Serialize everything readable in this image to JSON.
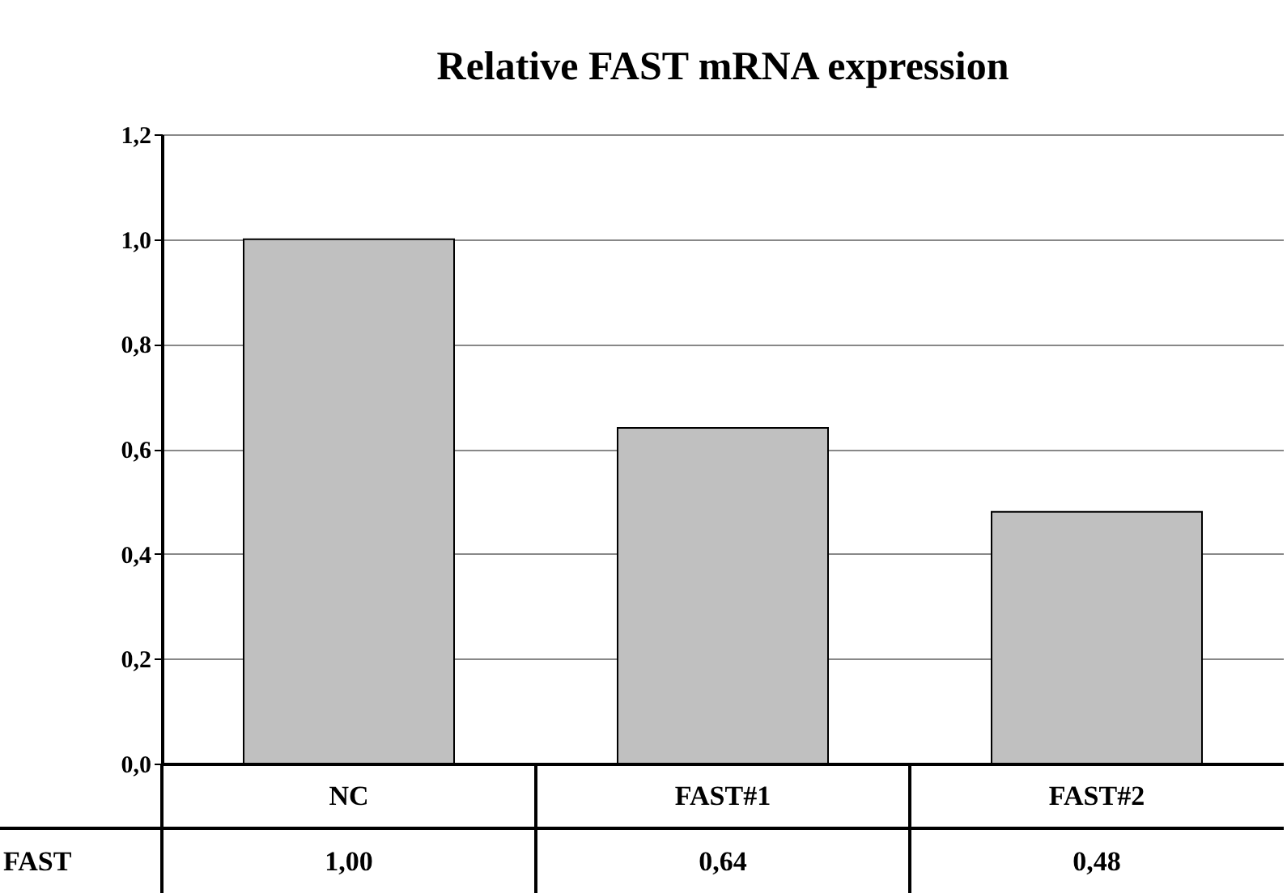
{
  "chart_data": {
    "type": "bar",
    "title": "Relative FAST mRNA expression",
    "categories": [
      "NC",
      "FAST#1",
      "FAST#2"
    ],
    "series": [
      {
        "name": "FAST",
        "color": "#c0c0c0",
        "values": [
          1.0,
          0.64,
          0.48
        ],
        "value_labels": [
          "1,00",
          "0,64",
          "0,48"
        ]
      }
    ],
    "ylim": [
      0,
      1.2
    ],
    "yticks": [
      {
        "value": 0,
        "label": "0,0"
      },
      {
        "value": 0.2,
        "label": "0,2"
      },
      {
        "value": 0.4,
        "label": "0,4"
      },
      {
        "value": 0.6,
        "label": "0,6"
      },
      {
        "value": 0.8,
        "label": "0,8"
      },
      {
        "value": 1.0,
        "label": "1,0"
      },
      {
        "value": 1.2,
        "label": "1,2"
      }
    ],
    "grid": "y"
  }
}
